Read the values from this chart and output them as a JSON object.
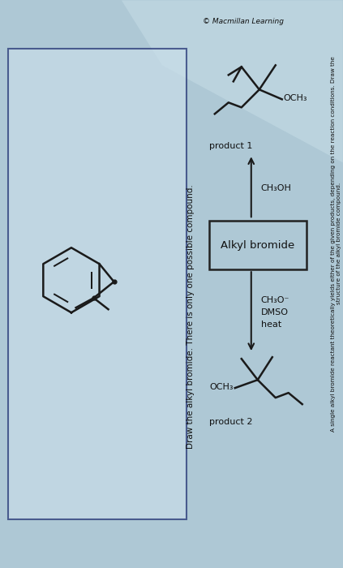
{
  "bg_color": "#aec8d5",
  "bg_color2": "#c5dce5",
  "title_text": "A single alkyl bromide reactant theoretically yields either of the given products, depending on the reaction conditions. Draw the\nstructure of the alkyl bromide compound.",
  "copyright_text": "© Macmillan Learning",
  "box_label": "Alkyl bromide",
  "product1_label": "product 1",
  "product2_label": "product 2",
  "reagent_up": "CH₃OH",
  "reagent_down_line1": "CH₃O⁻",
  "reagent_down_line2": "DMSO",
  "reagent_down_line3": "heat",
  "draw_label_line1": "Draw the alkyl bromide. There is only one possible compound.",
  "line_color": "#1a1a1a",
  "box_border_color": "#222222",
  "text_color": "#111111",
  "blue_line_color": "#1a2a6e",
  "white_panel_color": "#d4e8f0",
  "glare_color": "#ddeef5"
}
